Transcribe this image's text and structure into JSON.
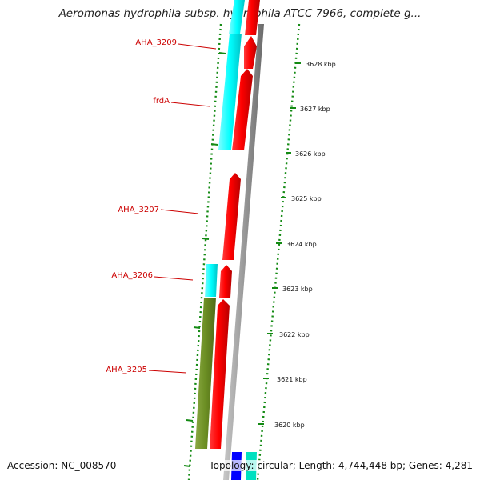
{
  "title": "Aeromonas hydrophila subsp. hydrophila ATCC 7966, complete g...",
  "footer": {
    "accession": "Accession: NC_008570",
    "stats": "Topology: circular; Length: 4,744,448 bp; Genes: 4,281"
  },
  "scale_labels": [
    "3628 kbp",
    "3627 kbp",
    "3626 kbp",
    "3625 kbp",
    "3624 kbp",
    "3623 kbp",
    "3622 kbp",
    "3621 kbp",
    "3620 kbp"
  ],
  "gene_labels": [
    "AHA_3209",
    "frdA",
    "AHA_3207",
    "AHA_3206",
    "AHA_3205"
  ],
  "colors": {
    "cds": "#ff0000",
    "cyan_feature": "#00ffff",
    "olive_feature": "#6b8e23",
    "blue_feature": "#0000ff",
    "teal_feature": "#00e0c0",
    "backbone": "#8a8a8a",
    "dotted_ring": "#138a13",
    "label": "#cc0000"
  }
}
